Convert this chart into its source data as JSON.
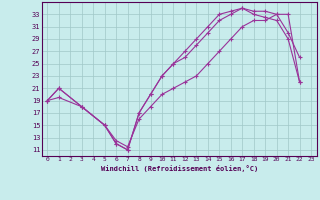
{
  "xlabel": "Windchill (Refroidissement éolien,°C)",
  "bg_color": "#c8ecec",
  "grid_color": "#a0c8c8",
  "line_color": "#993399",
  "xlim": [
    -0.5,
    23.5
  ],
  "ylim": [
    10,
    35
  ],
  "xticks": [
    0,
    1,
    2,
    3,
    4,
    5,
    6,
    7,
    8,
    9,
    10,
    11,
    12,
    13,
    14,
    15,
    16,
    17,
    18,
    19,
    20,
    21,
    22,
    23
  ],
  "yticks": [
    11,
    13,
    15,
    17,
    19,
    21,
    23,
    25,
    27,
    29,
    31,
    33
  ],
  "line1_x": [
    0,
    1,
    3,
    5,
    6,
    7,
    8,
    9,
    10,
    11,
    12,
    13,
    14,
    15,
    16,
    17,
    18,
    19,
    20,
    21,
    22
  ],
  "line1_y": [
    19,
    21,
    18,
    15,
    12,
    11,
    17,
    20,
    23,
    25,
    27,
    29,
    31,
    33,
    33.5,
    34,
    33.5,
    33.5,
    33,
    30,
    26
  ],
  "line2_x": [
    0,
    1,
    3,
    5,
    6,
    7,
    8,
    9,
    10,
    11,
    12,
    13,
    14,
    15,
    16,
    17,
    18,
    19,
    20,
    21,
    22
  ],
  "line2_y": [
    19,
    21,
    18,
    15,
    12,
    11,
    17,
    20,
    23,
    25,
    26,
    28,
    30,
    32,
    33,
    34,
    33,
    32.5,
    32,
    29,
    22
  ],
  "line3_x": [
    0,
    1,
    3,
    5,
    6,
    7,
    8,
    9,
    10,
    11,
    12,
    13,
    14,
    15,
    16,
    17,
    18,
    19,
    20,
    21,
    22
  ],
  "line3_y": [
    19,
    19.5,
    18,
    15,
    12.5,
    11.5,
    16,
    18,
    20,
    21,
    22,
    23,
    25,
    27,
    29,
    31,
    32,
    32,
    33,
    33,
    22
  ]
}
